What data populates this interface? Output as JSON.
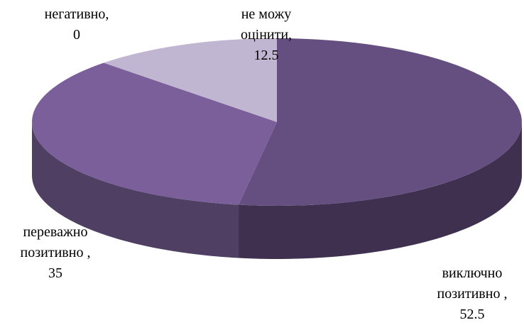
{
  "chart_data": {
    "type": "pie3d",
    "categories": [
      "виключно позитивно ,",
      "переважно позитивно ,",
      "негативно,",
      "не можу оцінити,"
    ],
    "values": [
      52.5,
      35,
      0,
      12.5
    ],
    "colors": [
      "#654e80",
      "#7b5f9a",
      "#8a7aa8",
      "#c0b6d2"
    ],
    "side_colors": [
      "#3f3050",
      "#4f3f63",
      "#5a4d70",
      "#8b7f9e"
    ]
  }
}
